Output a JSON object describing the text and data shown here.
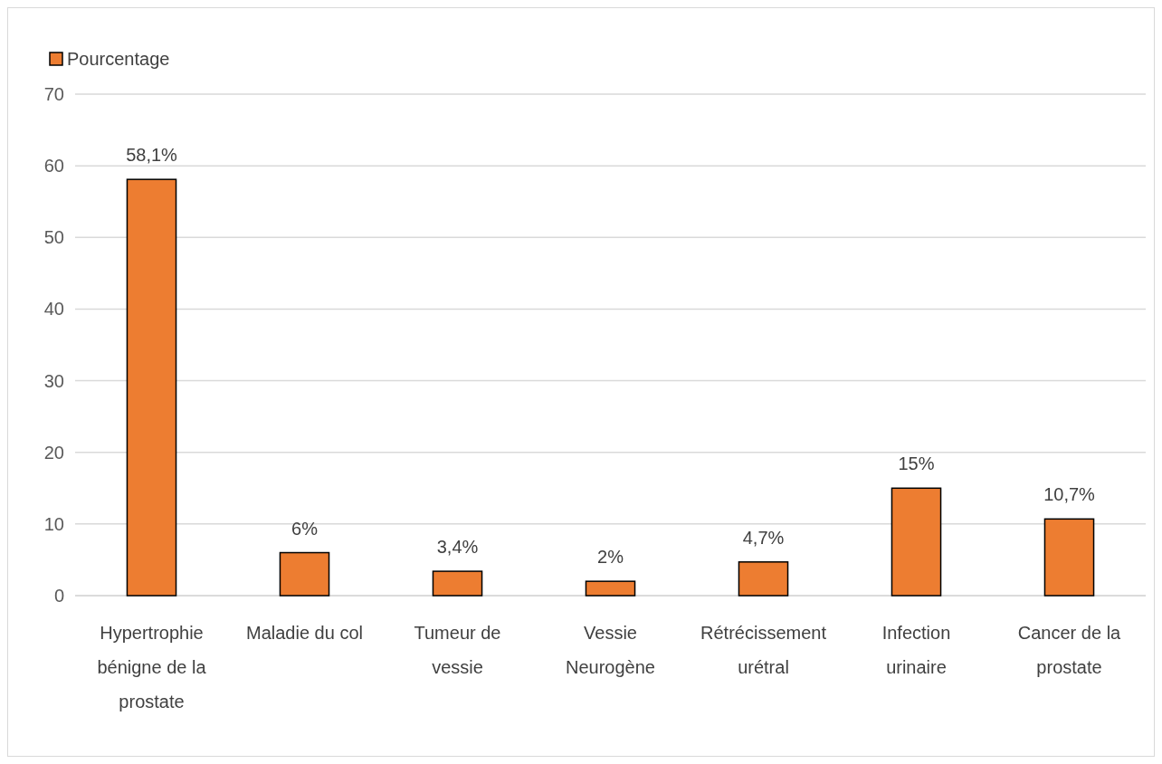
{
  "chart_data": {
    "type": "bar",
    "categories": [
      "Hypertrophie bénigne de la prostate",
      "Maladie du col",
      "Tumeur de vessie",
      "Vessie Neurogène",
      "Rétrécissement urétral",
      "Infection urinaire",
      "Cancer de la prostate"
    ],
    "series": [
      {
        "name": "Pourcentage",
        "color": "#ed7d31",
        "values": [
          58.1,
          6,
          3.4,
          2,
          4.7,
          15,
          10.7
        ],
        "value_labels": [
          "58,1%",
          "6%",
          "3,4%",
          "2%",
          "4,7%",
          "15%",
          "10,7%"
        ]
      }
    ],
    "ylim": [
      0,
      70
    ],
    "yticks": [
      0,
      10,
      20,
      30,
      40,
      50,
      60,
      70
    ],
    "grid": "y",
    "legend": "top left"
  }
}
